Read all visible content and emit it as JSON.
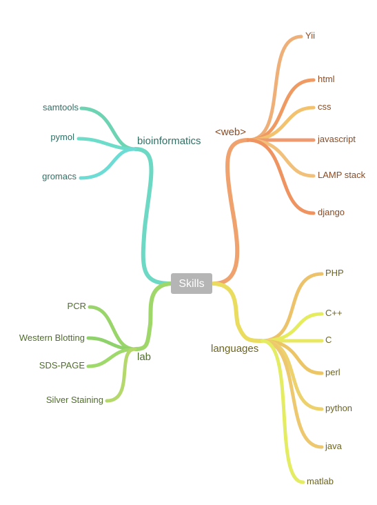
{
  "root": {
    "label": "Skills",
    "color": "#b5b5b5",
    "groups": [
      {
        "label": "bioinformatics",
        "color": "#6dd9c5",
        "text_color": "#2f6f64",
        "children": [
          {
            "label": "samtools",
            "color": "#6dd3b2"
          },
          {
            "label": "pymol",
            "color": "#6ddcc9"
          },
          {
            "label": "gromacs",
            "color": "#6ddcd5"
          }
        ]
      },
      {
        "label": "<web>",
        "color": "#efa26e",
        "text_color": "#8a4a23",
        "children": [
          {
            "label": "Yii",
            "color": "#eeb078"
          },
          {
            "label": "html",
            "color": "#ef9a63"
          },
          {
            "label": "css",
            "color": "#f2c26e"
          },
          {
            "label": "javascript",
            "color": "#ee9a70"
          },
          {
            "label": "LAMP stack",
            "color": "#f1c07a"
          },
          {
            "label": "django",
            "color": "#ef9360"
          }
        ]
      },
      {
        "label": "lab",
        "color": "#9fd76a",
        "text_color": "#4f6e2a",
        "children": [
          {
            "label": "PCR",
            "color": "#99d56b"
          },
          {
            "label": "Western Blotting",
            "color": "#8fd16a"
          },
          {
            "label": "SDS-PAGE",
            "color": "#9fd86b"
          },
          {
            "label": "Silver Staining",
            "color": "#b5d86d"
          }
        ]
      },
      {
        "label": "languages",
        "color": "#e9dc5e",
        "text_color": "#6c6420",
        "children": [
          {
            "label": "PHP",
            "color": "#ecc36a"
          },
          {
            "label": "C++",
            "color": "#e5ec5e"
          },
          {
            "label": "C",
            "color": "#e8e862"
          },
          {
            "label": "perl",
            "color": "#ecc666"
          },
          {
            "label": "python",
            "color": "#edd16c"
          },
          {
            "label": "java",
            "color": "#edc86f"
          },
          {
            "label": "matlab",
            "color": "#e3ec62"
          }
        ]
      }
    ]
  }
}
